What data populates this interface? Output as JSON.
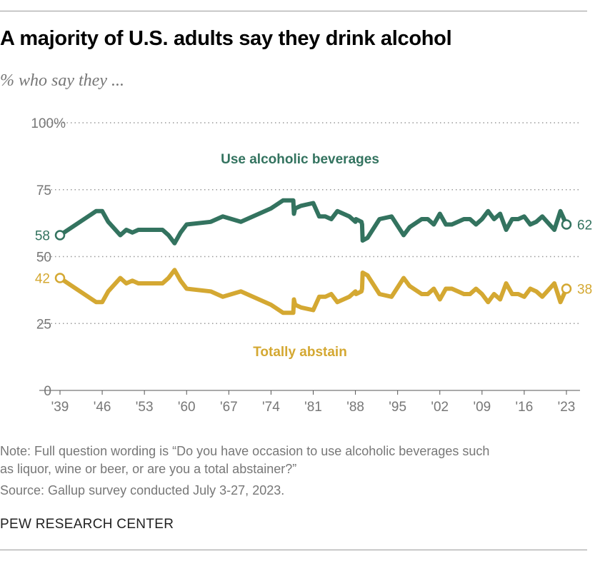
{
  "title": "A majority of U.S. adults say they drink alcohol",
  "subtitle": "% who say they ...",
  "note": "Note: Full question wording is “Do you have occasion to use alcoholic beverages such as liquor, wine or beer, or are you a total abstainer?”",
  "source": "Source: Gallup survey conducted July 3-27, 2023.",
  "brand": "PEW RESEARCH CENTER",
  "chart_data": {
    "type": "line",
    "ylim": [
      0,
      100
    ],
    "xlim": [
      1939,
      2023
    ],
    "grid": true,
    "y_ticks": [
      0,
      25,
      50,
      75,
      100
    ],
    "y_tick_labels": [
      "0",
      "25",
      "50",
      "75",
      "100%"
    ],
    "x_ticks": [
      1939,
      1946,
      1953,
      1960,
      1967,
      1974,
      1981,
      1988,
      1995,
      2002,
      2009,
      2016,
      2023
    ],
    "x_tick_labels": [
      "'39",
      "'46",
      "'53",
      "'60",
      "'67",
      "'74",
      "'81",
      "'88",
      "'95",
      "'02",
      "'09",
      "'16",
      "'23"
    ],
    "series": [
      {
        "name": "Use alcoholic beverages",
        "color": "#33735f",
        "start_label": "58",
        "end_label": "62",
        "points": [
          [
            1939,
            58
          ],
          [
            1945,
            67
          ],
          [
            1946,
            67
          ],
          [
            1947,
            63
          ],
          [
            1949,
            58
          ],
          [
            1950,
            60
          ],
          [
            1951,
            59
          ],
          [
            1952,
            60
          ],
          [
            1956,
            60
          ],
          [
            1957,
            58
          ],
          [
            1958,
            55
          ],
          [
            1959,
            59
          ],
          [
            1960,
            62
          ],
          [
            1964,
            63
          ],
          [
            1966,
            65
          ],
          [
            1969,
            63
          ],
          [
            1974,
            68
          ],
          [
            1976,
            71
          ],
          [
            1977.7,
            71
          ],
          [
            1977.8,
            66
          ],
          [
            1978,
            68
          ],
          [
            1979,
            69
          ],
          [
            1981,
            70
          ],
          [
            1982,
            65
          ],
          [
            1983,
            65
          ],
          [
            1984,
            64
          ],
          [
            1985,
            67
          ],
          [
            1987,
            65
          ],
          [
            1988,
            63
          ],
          [
            1988.1,
            64
          ],
          [
            1989,
            63
          ],
          [
            1989.1,
            62
          ],
          [
            1989.2,
            56
          ],
          [
            1990,
            57
          ],
          [
            1992,
            64
          ],
          [
            1994,
            65
          ],
          [
            1996,
            58
          ],
          [
            1997,
            61
          ],
          [
            1999,
            64
          ],
          [
            2000,
            64
          ],
          [
            2001,
            62
          ],
          [
            2002,
            66
          ],
          [
            2003,
            62
          ],
          [
            2004,
            62
          ],
          [
            2005,
            63
          ],
          [
            2006,
            64
          ],
          [
            2007,
            64
          ],
          [
            2008,
            62
          ],
          [
            2009,
            64
          ],
          [
            2010,
            67
          ],
          [
            2011,
            64
          ],
          [
            2012,
            66
          ],
          [
            2013,
            60
          ],
          [
            2014,
            64
          ],
          [
            2015,
            64
          ],
          [
            2016,
            65
          ],
          [
            2017,
            62
          ],
          [
            2018,
            63
          ],
          [
            2019,
            65
          ],
          [
            2021,
            60
          ],
          [
            2022,
            67
          ],
          [
            2023,
            62
          ]
        ]
      },
      {
        "name": "Totally abstain",
        "color": "#d4a832",
        "start_label": "42",
        "end_label": "38",
        "points": [
          [
            1939,
            42
          ],
          [
            1945,
            33
          ],
          [
            1946,
            33
          ],
          [
            1947,
            37
          ],
          [
            1949,
            42
          ],
          [
            1950,
            40
          ],
          [
            1951,
            41
          ],
          [
            1952,
            40
          ],
          [
            1956,
            40
          ],
          [
            1957,
            42
          ],
          [
            1958,
            45
          ],
          [
            1959,
            41
          ],
          [
            1960,
            38
          ],
          [
            1964,
            37
          ],
          [
            1966,
            35
          ],
          [
            1969,
            37
          ],
          [
            1974,
            32
          ],
          [
            1976,
            29
          ],
          [
            1977.7,
            29
          ],
          [
            1977.8,
            34
          ],
          [
            1978,
            32
          ],
          [
            1979,
            31
          ],
          [
            1981,
            30
          ],
          [
            1982,
            35
          ],
          [
            1983,
            35
          ],
          [
            1984,
            36
          ],
          [
            1985,
            33
          ],
          [
            1987,
            35
          ],
          [
            1988,
            37
          ],
          [
            1988.1,
            36
          ],
          [
            1989,
            37
          ],
          [
            1989.1,
            38
          ],
          [
            1989.2,
            44
          ],
          [
            1990,
            43
          ],
          [
            1992,
            36
          ],
          [
            1994,
            35
          ],
          [
            1996,
            42
          ],
          [
            1997,
            39
          ],
          [
            1999,
            36
          ],
          [
            2000,
            36
          ],
          [
            2001,
            38
          ],
          [
            2002,
            34
          ],
          [
            2003,
            38
          ],
          [
            2004,
            38
          ],
          [
            2005,
            37
          ],
          [
            2006,
            36
          ],
          [
            2007,
            36
          ],
          [
            2008,
            38
          ],
          [
            2009,
            36
          ],
          [
            2010,
            33
          ],
          [
            2011,
            36
          ],
          [
            2012,
            34
          ],
          [
            2013,
            40
          ],
          [
            2014,
            36
          ],
          [
            2015,
            36
          ],
          [
            2016,
            35
          ],
          [
            2017,
            38
          ],
          [
            2018,
            37
          ],
          [
            2019,
            35
          ],
          [
            2021,
            40
          ],
          [
            2022,
            33
          ],
          [
            2023,
            38
          ]
        ]
      }
    ]
  }
}
